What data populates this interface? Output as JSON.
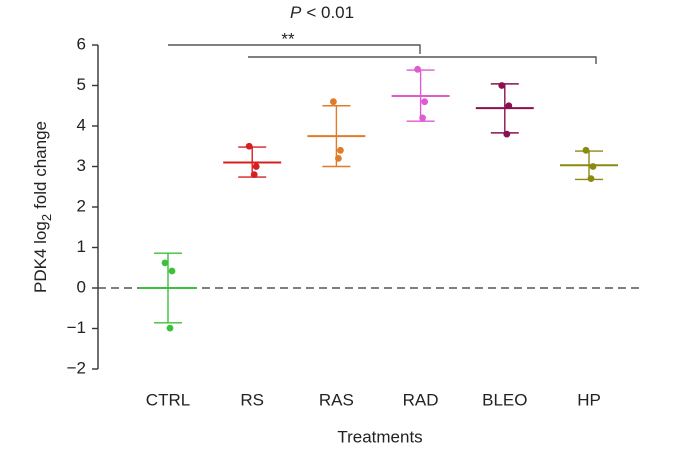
{
  "chart_data": {
    "type": "dot-errorbar",
    "ylabel": {
      "main": "PDK4 log",
      "sub": "2",
      "rest": "fold change"
    },
    "xlabel": "Treatments",
    "annotation_p": {
      "italic": "P",
      "rest": "< 0.01"
    },
    "annotation_stars": "**",
    "categories": [
      "CTRL",
      "RS",
      "RAS",
      "RAD",
      "BLEO",
      "HP"
    ],
    "colors": [
      "#3cc13c",
      "#d42020",
      "#e07b2a",
      "#e05ad2",
      "#8b1050",
      "#8a8a10"
    ],
    "points": [
      [
        0.62,
        0.42,
        -0.99
      ],
      [
        3.5,
        3.0,
        2.8
      ],
      [
        4.6,
        3.4,
        3.2
      ],
      [
        5.4,
        4.6,
        4.2
      ],
      [
        5.0,
        4.5,
        3.8
      ],
      [
        3.4,
        3.0,
        2.7
      ]
    ],
    "means": [
      0.0,
      3.1,
      3.75,
      4.74,
      4.44,
      3.03
    ],
    "upper": [
      0.86,
      3.48,
      4.5,
      5.38,
      5.04,
      3.38
    ],
    "lower": [
      -0.86,
      2.74,
      3.0,
      4.12,
      3.83,
      2.68
    ],
    "ylim": [
      -2,
      6
    ],
    "yticks": [
      {
        "value": -2,
        "label": "−2"
      },
      {
        "value": -1,
        "label": "−1"
      },
      0,
      1,
      2,
      3,
      4,
      5,
      6
    ],
    "reference_line": 0
  }
}
